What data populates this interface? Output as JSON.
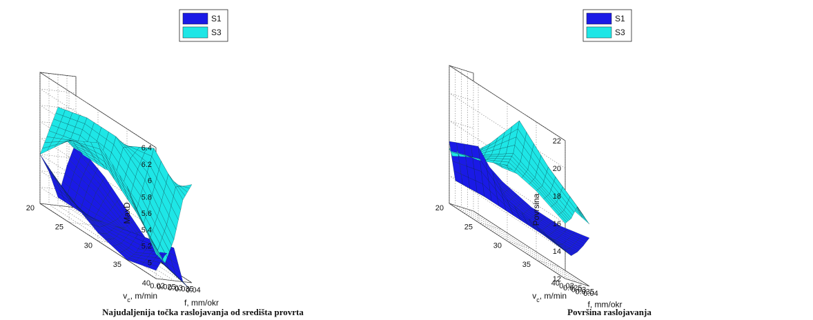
{
  "chart_data": [
    {
      "type": "surface",
      "caption": "Najudaljenija točka raslojavanja od središta provrta",
      "zlabel": "MaxD",
      "xlabel": "f, mm/okr",
      "ylabel": "v",
      "ylabel_sub": "c",
      "ylabel_unit": ", m/min",
      "zlim": [
        4.8,
        6.4
      ],
      "zticks": [
        "5",
        "5.2",
        "5.4",
        "5.6",
        "5.8",
        "6",
        "6.2",
        "6.4"
      ],
      "xticks": [
        "0.02",
        "0.025",
        "0.03",
        "0.035",
        "0.04"
      ],
      "yticks": [
        "20",
        "25",
        "30",
        "35",
        "40"
      ],
      "legend": [
        "S1",
        "S3"
      ],
      "grid": true,
      "legend_position": "top-center",
      "f": [
        0.02,
        0.025,
        0.03,
        0.035,
        0.04
      ],
      "vc": [
        20,
        25,
        30,
        35,
        40
      ],
      "series": [
        {
          "name": "S1",
          "color": "#1a1ae6",
          "z": [
            [
              5.4,
              5.2,
              4.9,
              5.3,
              5.6
            ],
            [
              5.1,
              5.0,
              4.9,
              5.2,
              5.4
            ],
            [
              4.9,
              4.9,
              5.0,
              5.0,
              5.1
            ],
            [
              4.8,
              4.9,
              5.1,
              4.9,
              4.8
            ],
            [
              4.9,
              5.1,
              5.2,
              4.8,
              4.7
            ]
          ]
        },
        {
          "name": "S3",
          "color": "#1ee6e6",
          "z": [
            [
              5.4,
              5.7,
              6.0,
              5.6,
              5.5
            ],
            [
              5.8,
              5.8,
              6.1,
              5.7,
              5.5
            ],
            [
              6.0,
              5.7,
              6.1,
              6.0,
              5.6
            ],
            [
              5.7,
              5.4,
              5.8,
              6.2,
              5.7
            ],
            [
              5.1,
              5.0,
              5.3,
              5.8,
              6.0
            ]
          ]
        }
      ]
    },
    {
      "type": "surface",
      "caption": "Površina raslojavanja",
      "zlabel": "Povrsina",
      "xlabel": "f, mm/okr",
      "ylabel": "v",
      "ylabel_sub": "c",
      "ylabel_unit": ", m/min",
      "zlim": [
        12,
        22
      ],
      "zticks": [
        "12",
        "14",
        "16",
        "18",
        "20",
        "22"
      ],
      "xticks": [
        "0.02",
        "0.025",
        "0.03",
        "0.035",
        "0.04"
      ],
      "yticks": [
        "20",
        "25",
        "30",
        "35",
        "40"
      ],
      "legend": [
        "S1",
        "S3"
      ],
      "grid": true,
      "legend_position": "top-center",
      "f": [
        0.02,
        0.025,
        0.03,
        0.035,
        0.04
      ],
      "vc": [
        20,
        25,
        30,
        35,
        40
      ],
      "series": [
        {
          "name": "S1",
          "color": "#1a1ae6",
          "z": [
            [
              16.5,
              13.8,
              14.0,
              15.5,
              16.5
            ],
            [
              17.5,
              14.0,
              14.0,
              15.0,
              15.5
            ],
            [
              15.0,
              14.0,
              14.0,
              14.5,
              15.0
            ],
            [
              14.5,
              14.0,
              14.0,
              14.5,
              15.0
            ],
            [
              14.0,
              13.8,
              14.2,
              14.8,
              15.5
            ]
          ]
        },
        {
          "name": "S3",
          "color": "#1ee6e6",
          "z": [
            [
              16.0,
              15.0,
              15.5,
              16.0,
              16.3
            ],
            [
              16.5,
              17.0,
              18.0,
              17.0,
              16.5
            ],
            [
              17.5,
              18.5,
              21.0,
              18.0,
              17.0
            ],
            [
              17.0,
              17.5,
              19.0,
              18.5,
              17.0
            ],
            [
              16.0,
              16.5,
              17.5,
              17.0,
              16.5
            ]
          ]
        }
      ]
    }
  ]
}
